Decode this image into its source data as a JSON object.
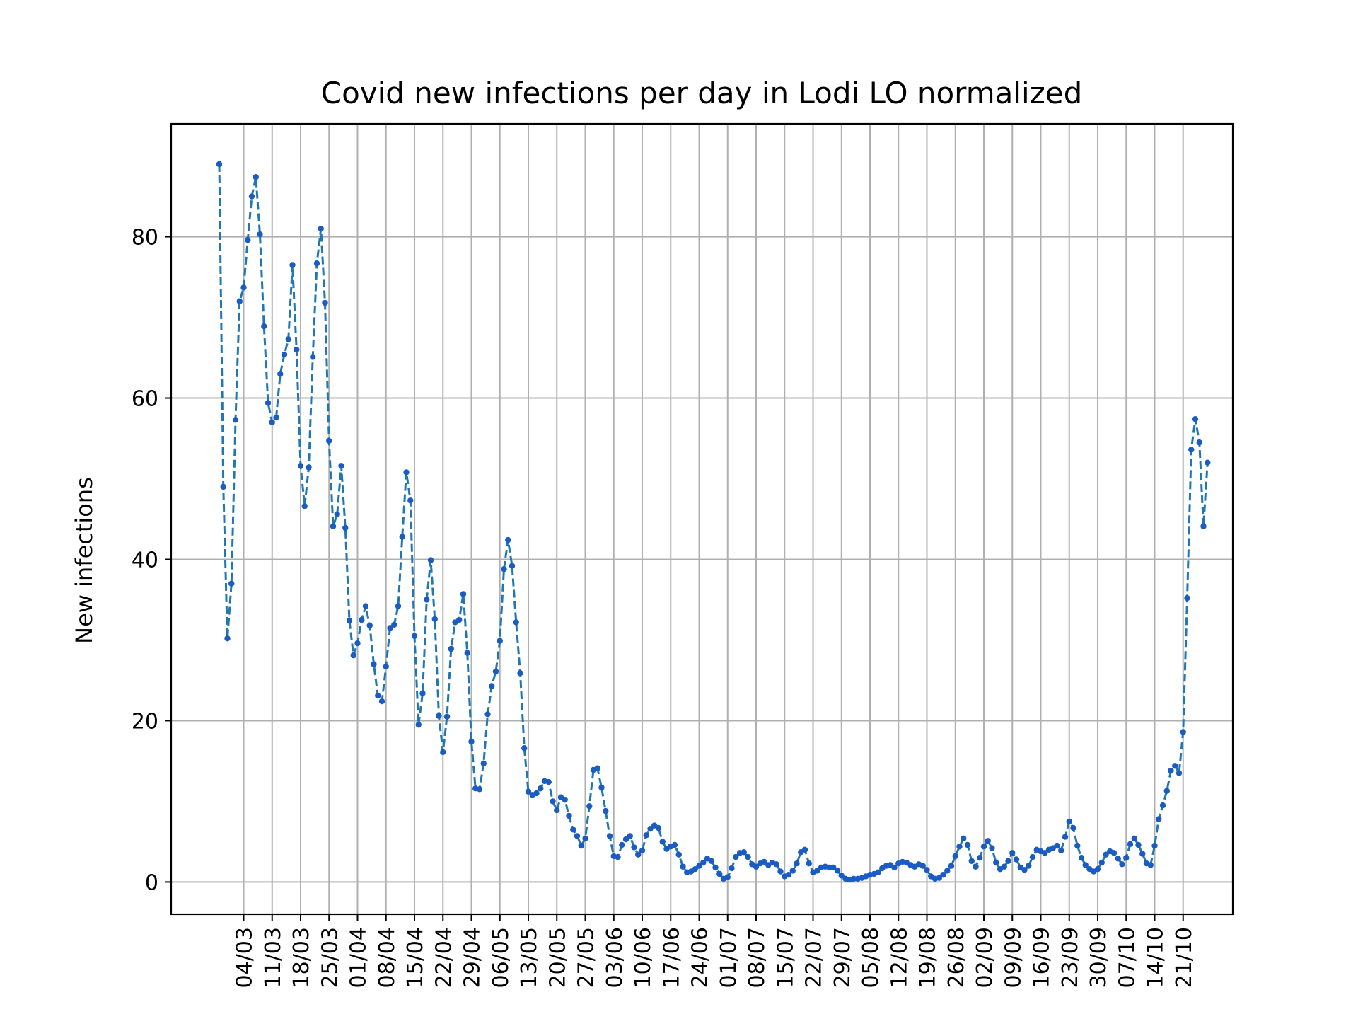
{
  "chart_data": {
    "type": "line",
    "title": "Covid new infections per day in Lodi LO normalized",
    "xlabel": "",
    "ylabel": "New infections",
    "ylim": [
      -4,
      94
    ],
    "yticks": [
      0,
      20,
      40,
      60,
      80
    ],
    "x_start": "27/02",
    "x_end": "21/10",
    "xticks": [
      "04/03",
      "11/03",
      "18/03",
      "25/03",
      "01/04",
      "08/04",
      "15/04",
      "22/04",
      "29/04",
      "06/05",
      "13/05",
      "20/05",
      "27/05",
      "03/06",
      "10/06",
      "17/06",
      "24/06",
      "01/07",
      "08/07",
      "15/07",
      "22/07",
      "29/07",
      "05/08",
      "12/08",
      "19/08",
      "26/08",
      "02/09",
      "09/09",
      "16/09",
      "23/09",
      "30/09",
      "07/10",
      "14/10",
      "21/10"
    ],
    "grid": true,
    "line_style": "dashed",
    "marker": "dot",
    "series": [
      {
        "name": "",
        "color": "#1f77b4",
        "values": [
          89.0,
          49.0,
          30.2,
          37.0,
          57.3,
          72.0,
          73.7,
          79.6,
          85.0,
          87.4,
          80.3,
          68.9,
          59.4,
          57.0,
          57.6,
          63.0,
          65.4,
          67.3,
          76.5,
          66.0,
          51.6,
          46.6,
          51.4,
          65.1,
          76.7,
          81.0,
          71.8,
          54.7,
          44.1,
          45.6,
          51.6,
          43.9,
          32.4,
          28.1,
          29.6,
          32.5,
          34.2,
          31.8,
          27.0,
          23.1,
          22.4,
          26.7,
          31.5,
          31.9,
          34.2,
          42.8,
          50.8,
          47.3,
          30.5,
          19.5,
          23.4,
          35.0,
          39.9,
          32.6,
          20.6,
          16.1,
          20.5,
          28.9,
          32.2,
          32.5,
          35.7,
          28.4,
          17.4,
          11.6,
          11.5,
          14.7,
          20.8,
          24.3,
          26.1,
          29.9,
          38.8,
          42.4,
          39.2,
          32.2,
          25.9,
          16.6,
          11.2,
          10.8,
          11.0,
          11.6,
          12.5,
          12.4,
          10.0,
          8.9,
          10.5,
          10.2,
          8.2,
          6.5,
          5.7,
          4.5,
          5.4,
          9.4,
          13.9,
          14.1,
          11.7,
          8.8,
          5.7,
          3.2,
          3.1,
          4.6,
          5.3,
          5.7,
          4.3,
          3.4,
          3.9,
          5.8,
          6.6,
          7.0,
          6.7,
          5.0,
          4.1,
          4.4,
          4.6,
          3.4,
          1.9,
          1.2,
          1.3,
          1.6,
          2.0,
          2.4,
          2.9,
          2.6,
          1.8,
          1.0,
          0.4,
          0.6,
          1.7,
          3.1,
          3.6,
          3.7,
          3.1,
          2.2,
          1.9,
          2.3,
          2.5,
          2.1,
          2.4,
          2.2,
          1.3,
          0.7,
          0.9,
          1.4,
          2.3,
          3.7,
          4.0,
          2.3,
          1.2,
          1.4,
          1.8,
          1.9,
          1.8,
          1.8,
          1.4,
          0.8,
          0.4,
          0.3,
          0.4,
          0.4,
          0.5,
          0.7,
          0.9,
          1.0,
          1.2,
          1.7,
          2.0,
          2.1,
          1.8,
          2.3,
          2.5,
          2.4,
          2.1,
          1.9,
          2.2,
          2.0,
          1.5,
          0.7,
          0.4,
          0.5,
          0.9,
          1.4,
          2.0,
          3.2,
          4.4,
          5.4,
          4.6,
          2.6,
          1.9,
          3.0,
          4.4,
          5.1,
          4.2,
          2.4,
          1.6,
          1.9,
          2.6,
          3.6,
          2.8,
          1.8,
          1.5,
          2.0,
          3.1,
          4.0,
          3.8,
          3.6,
          4.0,
          4.2,
          4.5,
          3.9,
          5.6,
          7.5,
          6.7,
          4.5,
          3.0,
          2.1,
          1.6,
          1.3,
          1.6,
          2.4,
          3.4,
          3.8,
          3.6,
          2.9,
          2.2,
          3.0,
          4.7,
          5.4,
          4.6,
          3.5,
          2.3,
          2.1,
          4.5,
          7.8,
          9.5,
          11.3,
          13.8,
          14.4,
          13.5,
          18.6,
          35.2,
          53.6,
          57.4,
          54.5,
          44.1,
          52.0
        ]
      }
    ]
  }
}
